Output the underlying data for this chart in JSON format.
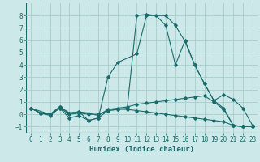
{
  "xlabel": "Humidex (Indice chaleur)",
  "xlim": [
    -0.5,
    23.5
  ],
  "ylim": [
    -1.5,
    9.0
  ],
  "yticks": [
    -1,
    0,
    1,
    2,
    3,
    4,
    5,
    6,
    7,
    8
  ],
  "xticks": [
    0,
    1,
    2,
    3,
    4,
    5,
    6,
    7,
    8,
    9,
    10,
    11,
    12,
    13,
    14,
    15,
    16,
    17,
    18,
    19,
    20,
    21,
    22,
    23
  ],
  "bg_color": "#cde8e8",
  "grid_color": "#a8cccc",
  "line_color": "#1a6b6b",
  "lines": [
    {
      "x": [
        0,
        1,
        2,
        3,
        4,
        5,
        6,
        7,
        8,
        9,
        10,
        11,
        12,
        13,
        14,
        15,
        16,
        17,
        18,
        19,
        20,
        21,
        22,
        23
      ],
      "y": [
        0.5,
        0.1,
        0.0,
        0.5,
        -0.3,
        -0.1,
        -0.5,
        -0.3,
        0.3,
        0.4,
        0.5,
        8.0,
        8.1,
        8.0,
        7.2,
        4.0,
        6.0,
        4.0,
        2.5,
        1.1,
        0.5,
        -0.9,
        -1.0,
        -1.0
      ]
    },
    {
      "x": [
        0,
        1,
        2,
        3,
        4,
        5,
        6,
        7,
        8,
        9,
        10,
        11,
        12,
        13,
        14,
        15,
        16,
        17,
        18,
        19,
        20,
        21,
        22,
        23
      ],
      "y": [
        0.5,
        0.1,
        0.0,
        0.6,
        0.1,
        0.2,
        0.1,
        -0.1,
        0.4,
        0.5,
        0.6,
        0.8,
        0.9,
        1.0,
        1.1,
        1.2,
        1.3,
        1.4,
        1.5,
        1.0,
        0.4,
        -0.9,
        -1.0,
        -1.0
      ]
    },
    {
      "x": [
        0,
        1,
        2,
        3,
        4,
        5,
        6,
        7,
        8,
        9,
        10,
        11,
        12,
        13,
        14,
        15,
        16,
        17,
        18,
        19,
        20,
        21,
        22,
        23
      ],
      "y": [
        0.5,
        0.1,
        -0.1,
        0.5,
        0.0,
        0.1,
        0.0,
        0.0,
        0.3,
        0.4,
        0.4,
        0.3,
        0.2,
        0.1,
        0.0,
        -0.1,
        -0.2,
        -0.3,
        -0.4,
        -0.5,
        -0.6,
        -0.9,
        -1.0,
        -1.0
      ]
    },
    {
      "x": [
        0,
        2,
        3,
        4,
        5,
        6,
        7,
        8,
        9,
        11,
        12,
        14,
        15,
        16,
        17,
        18,
        19,
        20,
        21,
        22,
        23
      ],
      "y": [
        0.5,
        0.0,
        0.6,
        0.1,
        0.2,
        -0.5,
        -0.3,
        3.0,
        4.2,
        4.9,
        8.0,
        8.0,
        7.2,
        5.9,
        4.0,
        2.5,
        1.1,
        1.6,
        1.2,
        0.5,
        -0.9
      ]
    }
  ]
}
